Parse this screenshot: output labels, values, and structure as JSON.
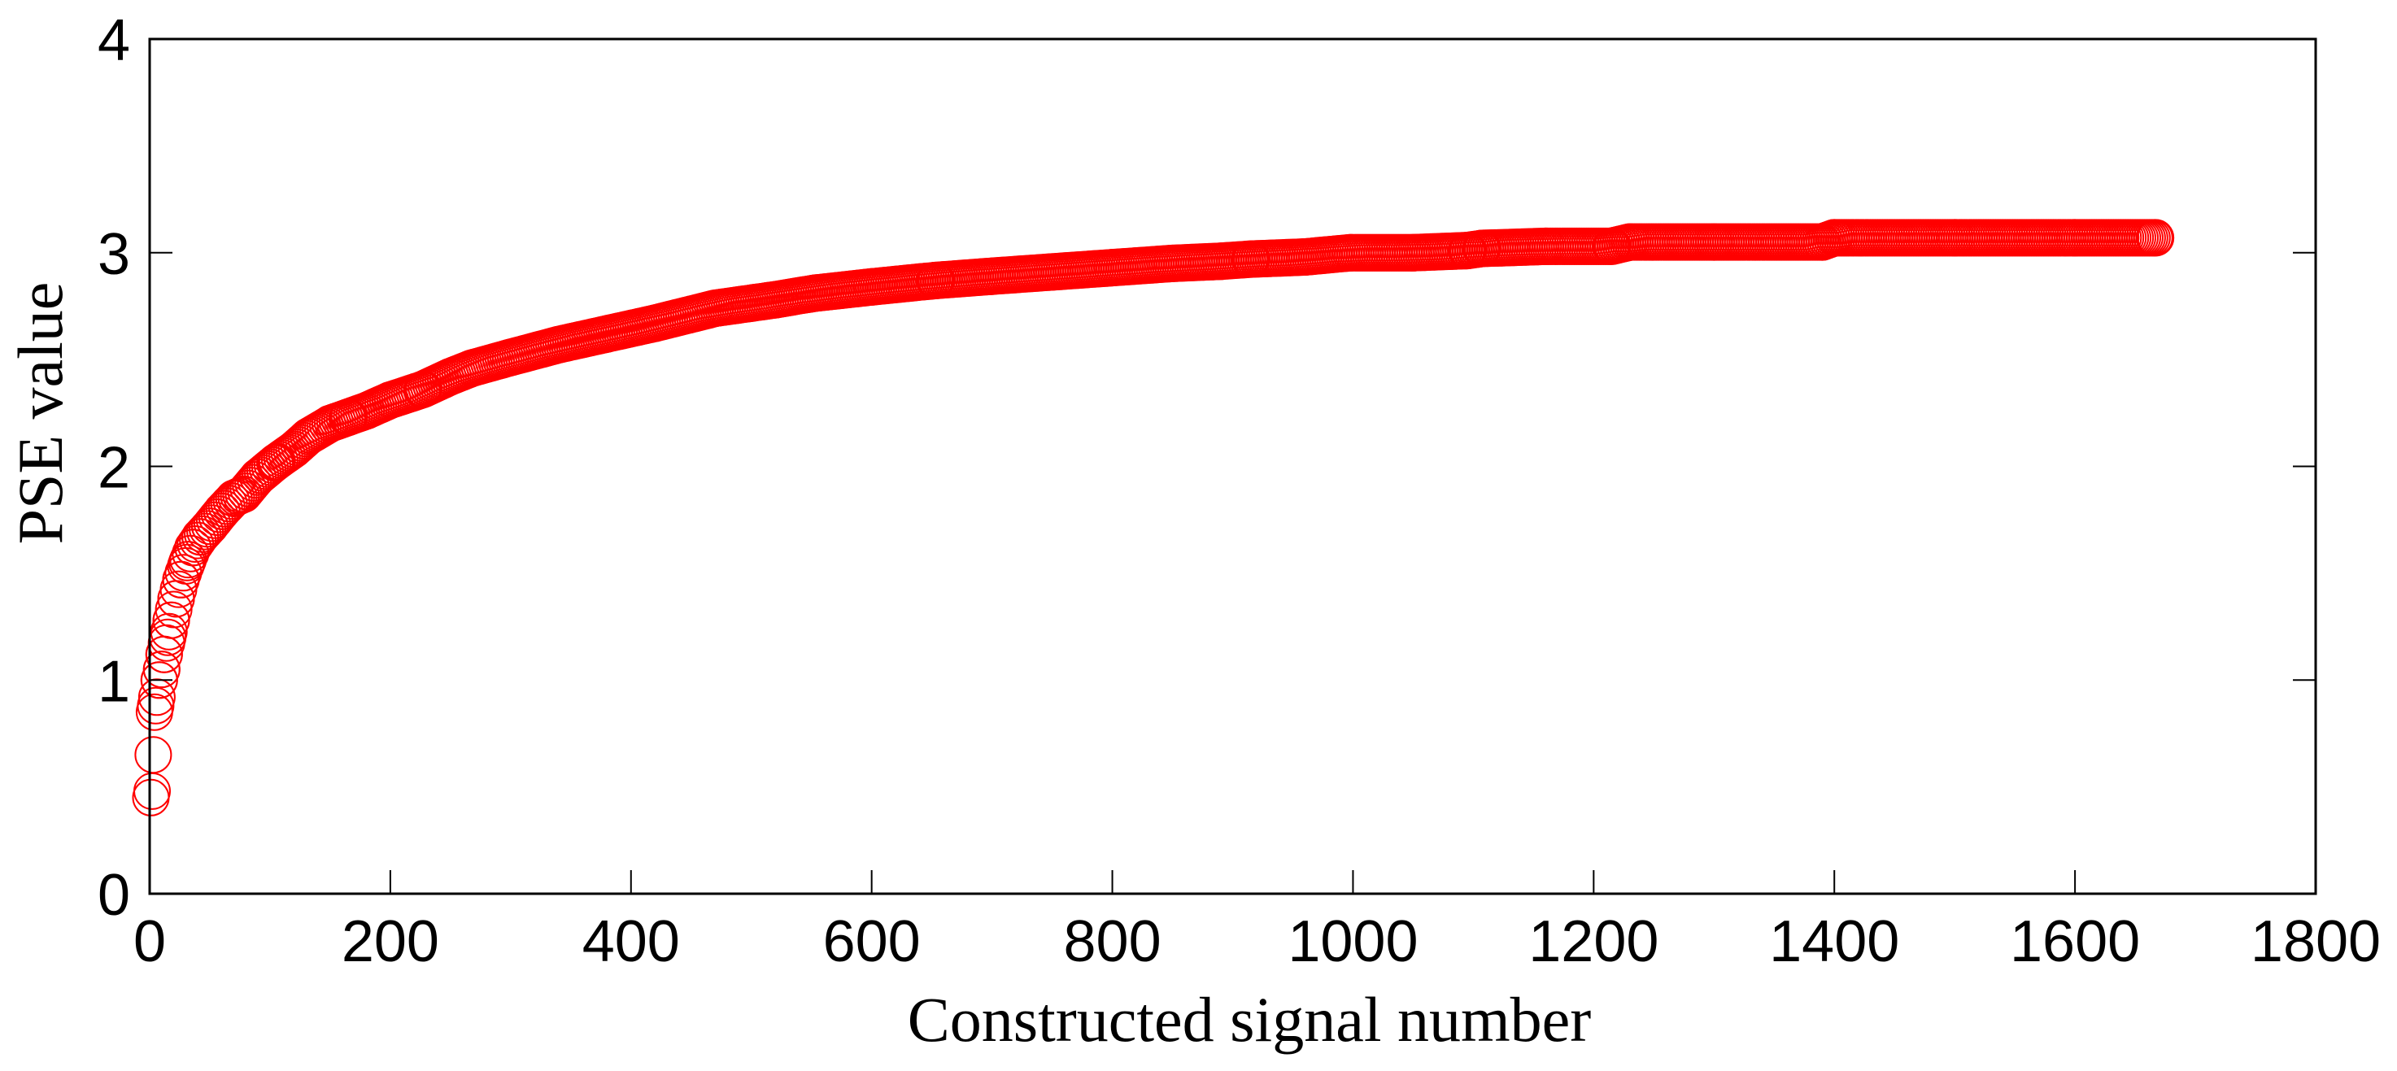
{
  "chart_data": {
    "type": "scatter",
    "title": "",
    "xlabel": "Constructed signal number",
    "ylabel": "PSE value",
    "xlim": [
      0,
      1800
    ],
    "ylim": [
      0,
      4
    ],
    "xticks": [
      0,
      200,
      400,
      600,
      800,
      1000,
      1200,
      1400,
      1600,
      1800
    ],
    "yticks": [
      0,
      1,
      2,
      3,
      4
    ],
    "grid": false,
    "legend": null,
    "marker": "open-circle",
    "color": "#ff0000",
    "n_points": 1667,
    "series": [
      {
        "name": "PSE value",
        "x": [
          1,
          2,
          3,
          4,
          5,
          6,
          8,
          10,
          12,
          15,
          18,
          22,
          26,
          31,
          36,
          42,
          50,
          60,
          70,
          78,
          90,
          105,
          120,
          132,
          150,
          165,
          180,
          200,
          227,
          250,
          268,
          300,
          340,
          380,
          420,
          470,
          520,
          552,
          600,
          653,
          700,
          750,
          800,
          850,
          890,
          915,
          960,
          998,
          1050,
          1095,
          1107,
          1160,
          1215,
          1230,
          1300,
          1390,
          1400,
          1500,
          1600,
          1667
        ],
        "y": [
          0.45,
          0.48,
          0.65,
          0.85,
          0.88,
          0.92,
          1.0,
          1.05,
          1.12,
          1.2,
          1.28,
          1.38,
          1.47,
          1.55,
          1.62,
          1.67,
          1.72,
          1.79,
          1.85,
          1.87,
          1.95,
          2.02,
          2.08,
          2.14,
          2.2,
          2.23,
          2.26,
          2.31,
          2.36,
          2.42,
          2.46,
          2.51,
          2.57,
          2.62,
          2.67,
          2.74,
          2.78,
          2.81,
          2.84,
          2.87,
          2.89,
          2.91,
          2.93,
          2.95,
          2.96,
          2.97,
          2.98,
          3.0,
          3.0,
          3.01,
          3.02,
          3.03,
          3.03,
          3.05,
          3.05,
          3.05,
          3.07,
          3.07,
          3.07,
          3.07
        ]
      }
    ]
  },
  "axes": {
    "x_tick_labels": [
      "0",
      "200",
      "400",
      "600",
      "800",
      "1000",
      "1200",
      "1400",
      "1600",
      "1800"
    ],
    "y_tick_labels": [
      "0",
      "1",
      "2",
      "3",
      "4"
    ]
  }
}
